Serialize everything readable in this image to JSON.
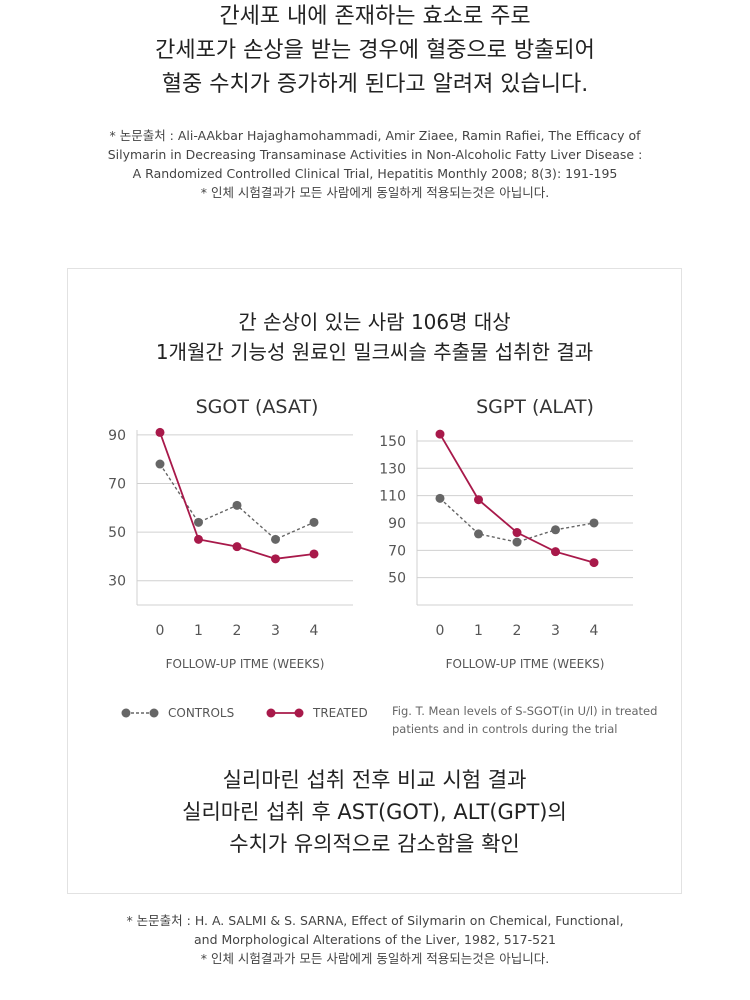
{
  "intro_lines": [
    "간세포 내에 존재하는 효소로 주로",
    "간세포가 손상을 받는 경우에 혈중으로 방출되어",
    "혈중 수치가 증가하게 된다고 알려져 있습니다."
  ],
  "reference_top": [
    "* 논문출처 : Ali-AAkbar Hajaghamohammadi, Amir Ziaee, Ramin Rafiei, The Efficacy of",
    "Silymarin in Decreasing Transaminase Activities in Non-Alcoholic Fatty Liver Disease :",
    "A Randomized Controlled Clinical Trial, Hepatitis Monthly 2008; 8(3): 191-195",
    "* 인체 시험결과가 모든 사람에게 동일하게 적용되는것은 아닙니다."
  ],
  "box_title": [
    "간 손상이 있는 사람 106명 대상",
    "1개월간 기능성 원료인 밀크씨슬 추출물 섭취한 결과"
  ],
  "colors": {
    "controls": "#666666",
    "treated": "#a8194a",
    "grid": "#d0d0d0"
  },
  "chart_data": [
    {
      "type": "line",
      "title": "SGOT (ASAT)",
      "xlabel": "FOLLOW-UP ITME (WEEKS)",
      "x": [
        0,
        1,
        2,
        3,
        4
      ],
      "xticks": [
        "0",
        "1",
        "2",
        "3",
        "4"
      ],
      "yticks": [
        30,
        50,
        70,
        90
      ],
      "ylim": [
        20,
        92
      ],
      "grid": true,
      "series": [
        {
          "name": "CONTROLS",
          "values": [
            78,
            54,
            61,
            47,
            54
          ],
          "style": "dashed"
        },
        {
          "name": "TREATED",
          "values": [
            91,
            47,
            44,
            39,
            41
          ],
          "style": "solid"
        }
      ]
    },
    {
      "type": "line",
      "title": "SGPT (ALAT)",
      "xlabel": "FOLLOW-UP ITME (WEEKS)",
      "x": [
        0,
        1,
        2,
        3,
        4
      ],
      "xticks": [
        "0",
        "1",
        "2",
        "3",
        "4"
      ],
      "yticks": [
        50,
        70,
        90,
        110,
        130,
        150
      ],
      "ylim": [
        30,
        158
      ],
      "grid": true,
      "series": [
        {
          "name": "CONTROLS",
          "values": [
            108,
            82,
            76,
            85,
            90
          ],
          "style": "dashed"
        },
        {
          "name": "TREATED",
          "values": [
            155,
            107,
            83,
            69,
            61
          ],
          "style": "solid"
        }
      ]
    }
  ],
  "legend": {
    "controls": "CONTROLS",
    "treated": "TREATED"
  },
  "caption": "Fig. T. Mean levels of S-SGOT(in U/l) in treated patients and in controls during the trial",
  "conclusion": [
    "실리마린 섭취 전후 비교 시험 결과",
    "실리마린 섭취 후 AST(GOT), ALT(GPT)의",
    "수치가 유의적으로 감소함을 확인"
  ],
  "reference_bottom": [
    "* 논문출처 : H. A. SALMI & S. SARNA, Effect of Silymarin on Chemical, Functional,",
    "and Morphological Alterations of the Liver, 1982, 517-521",
    "* 인체 시험결과가 모든 사람에게 동일하게 적용되는것은 아닙니다."
  ]
}
